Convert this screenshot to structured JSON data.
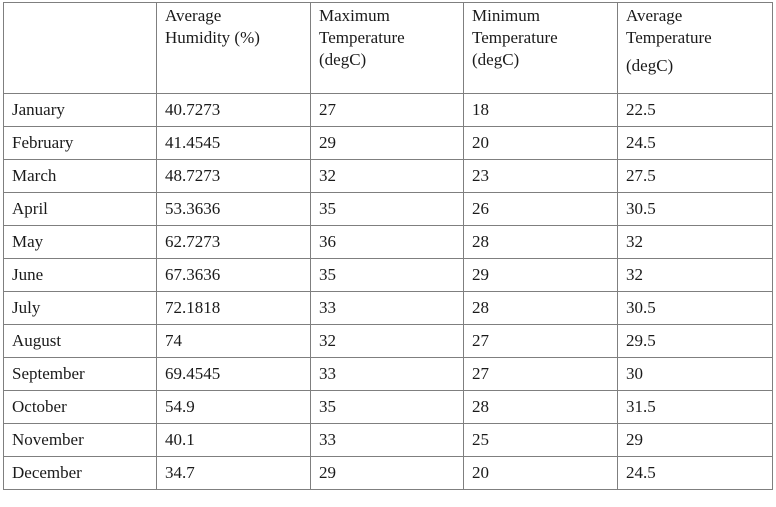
{
  "table": {
    "headers": [
      {
        "lines": [
          ""
        ]
      },
      {
        "lines": [
          "Average",
          "Humidity (%)"
        ]
      },
      {
        "lines": [
          "Maximum",
          "Temperature",
          "(degC)"
        ]
      },
      {
        "lines": [
          "Minimum",
          "Temperature",
          "(degC)"
        ]
      },
      {
        "lines": [
          "Average",
          "Temperature",
          "(degC)"
        ]
      }
    ],
    "rows": [
      {
        "month": "January",
        "humidity": "40.7273",
        "max": "27",
        "min": "18",
        "avg": "22.5"
      },
      {
        "month": "February",
        "humidity": "41.4545",
        "max": "29",
        "min": "20",
        "avg": "24.5"
      },
      {
        "month": "March",
        "humidity": "48.7273",
        "max": "32",
        "min": "23",
        "avg": "27.5"
      },
      {
        "month": "April",
        "humidity": "53.3636",
        "max": "35",
        "min": "26",
        "avg": "30.5"
      },
      {
        "month": "May",
        "humidity": "62.7273",
        "max": "36",
        "min": "28",
        "avg": "32"
      },
      {
        "month": "June",
        "humidity": "67.3636",
        "max": "35",
        "min": "29",
        "avg": "32"
      },
      {
        "month": "July",
        "humidity": "72.1818",
        "max": "33",
        "min": "28",
        "avg": "30.5"
      },
      {
        "month": "August",
        "humidity": "74",
        "max": "32",
        "min": "27",
        "avg": "29.5"
      },
      {
        "month": "September",
        "humidity": "69.4545",
        "max": "33",
        "min": "27",
        "avg": "30"
      },
      {
        "month": "October",
        "humidity": "54.9",
        "max": "35",
        "min": "28",
        "avg": "31.5"
      },
      {
        "month": "November",
        "humidity": "40.1",
        "max": "33",
        "min": "25",
        "avg": "29"
      },
      {
        "month": "December",
        "humidity": "34.7",
        "max": "29",
        "min": "20",
        "avg": "24.5"
      }
    ]
  }
}
